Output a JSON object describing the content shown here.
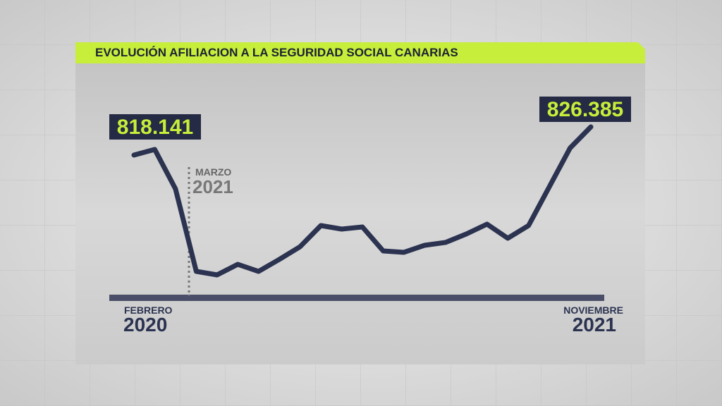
{
  "chart_data": {
    "type": "line",
    "title": "EVOLUCIÓN AFILIACION A LA SEGURIDAD SOCIAL CANARIAS",
    "values": [
      818141,
      819790,
      808248,
      784130,
      783100,
      786190,
      784130,
      787640,
      791350,
      797530,
      796500,
      797120,
      790110,
      789700,
      791760,
      792590,
      795060,
      797940,
      793820,
      797530,
      808870,
      820200,
      826385
    ],
    "value_labels": [
      "818.141",
      null,
      null,
      null,
      null,
      null,
      null,
      null,
      null,
      null,
      null,
      null,
      null,
      null,
      null,
      null,
      null,
      null,
      null,
      null,
      null,
      null,
      "826.385"
    ],
    "start_label": {
      "month": "FEBRERO",
      "year": "2020"
    },
    "marker_label": {
      "month": "MARZO",
      "year": "2021"
    },
    "end_label": {
      "month": "NOVIEMBRE",
      "year": "2021"
    },
    "color": "#2b3350"
  }
}
